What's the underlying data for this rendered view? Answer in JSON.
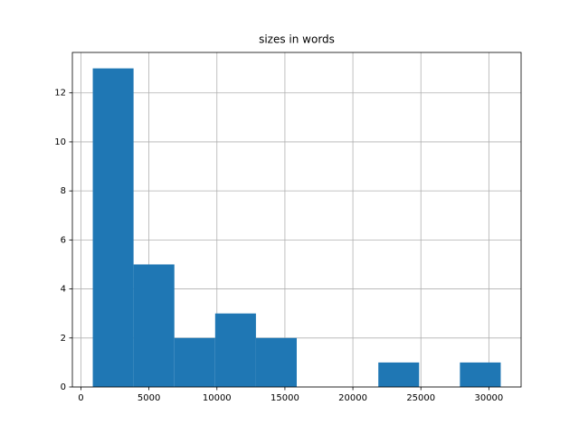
{
  "chart_data": {
    "type": "histogram",
    "title": "sizes in words",
    "bins": [
      870,
      3870,
      6870,
      9870,
      12870,
      15870,
      18870,
      21870,
      24870,
      27870,
      30870
    ],
    "counts": [
      13,
      5,
      2,
      3,
      2,
      0,
      0,
      1,
      0,
      1
    ],
    "color": "#1f77b4",
    "xlim": [
      -630,
      32370
    ],
    "xticks": [
      0,
      5000,
      10000,
      15000,
      20000,
      25000,
      30000
    ],
    "ylim": [
      0,
      13.65
    ],
    "yticks": [
      0,
      2,
      4,
      6,
      8,
      10,
      12
    ],
    "grid": true
  }
}
